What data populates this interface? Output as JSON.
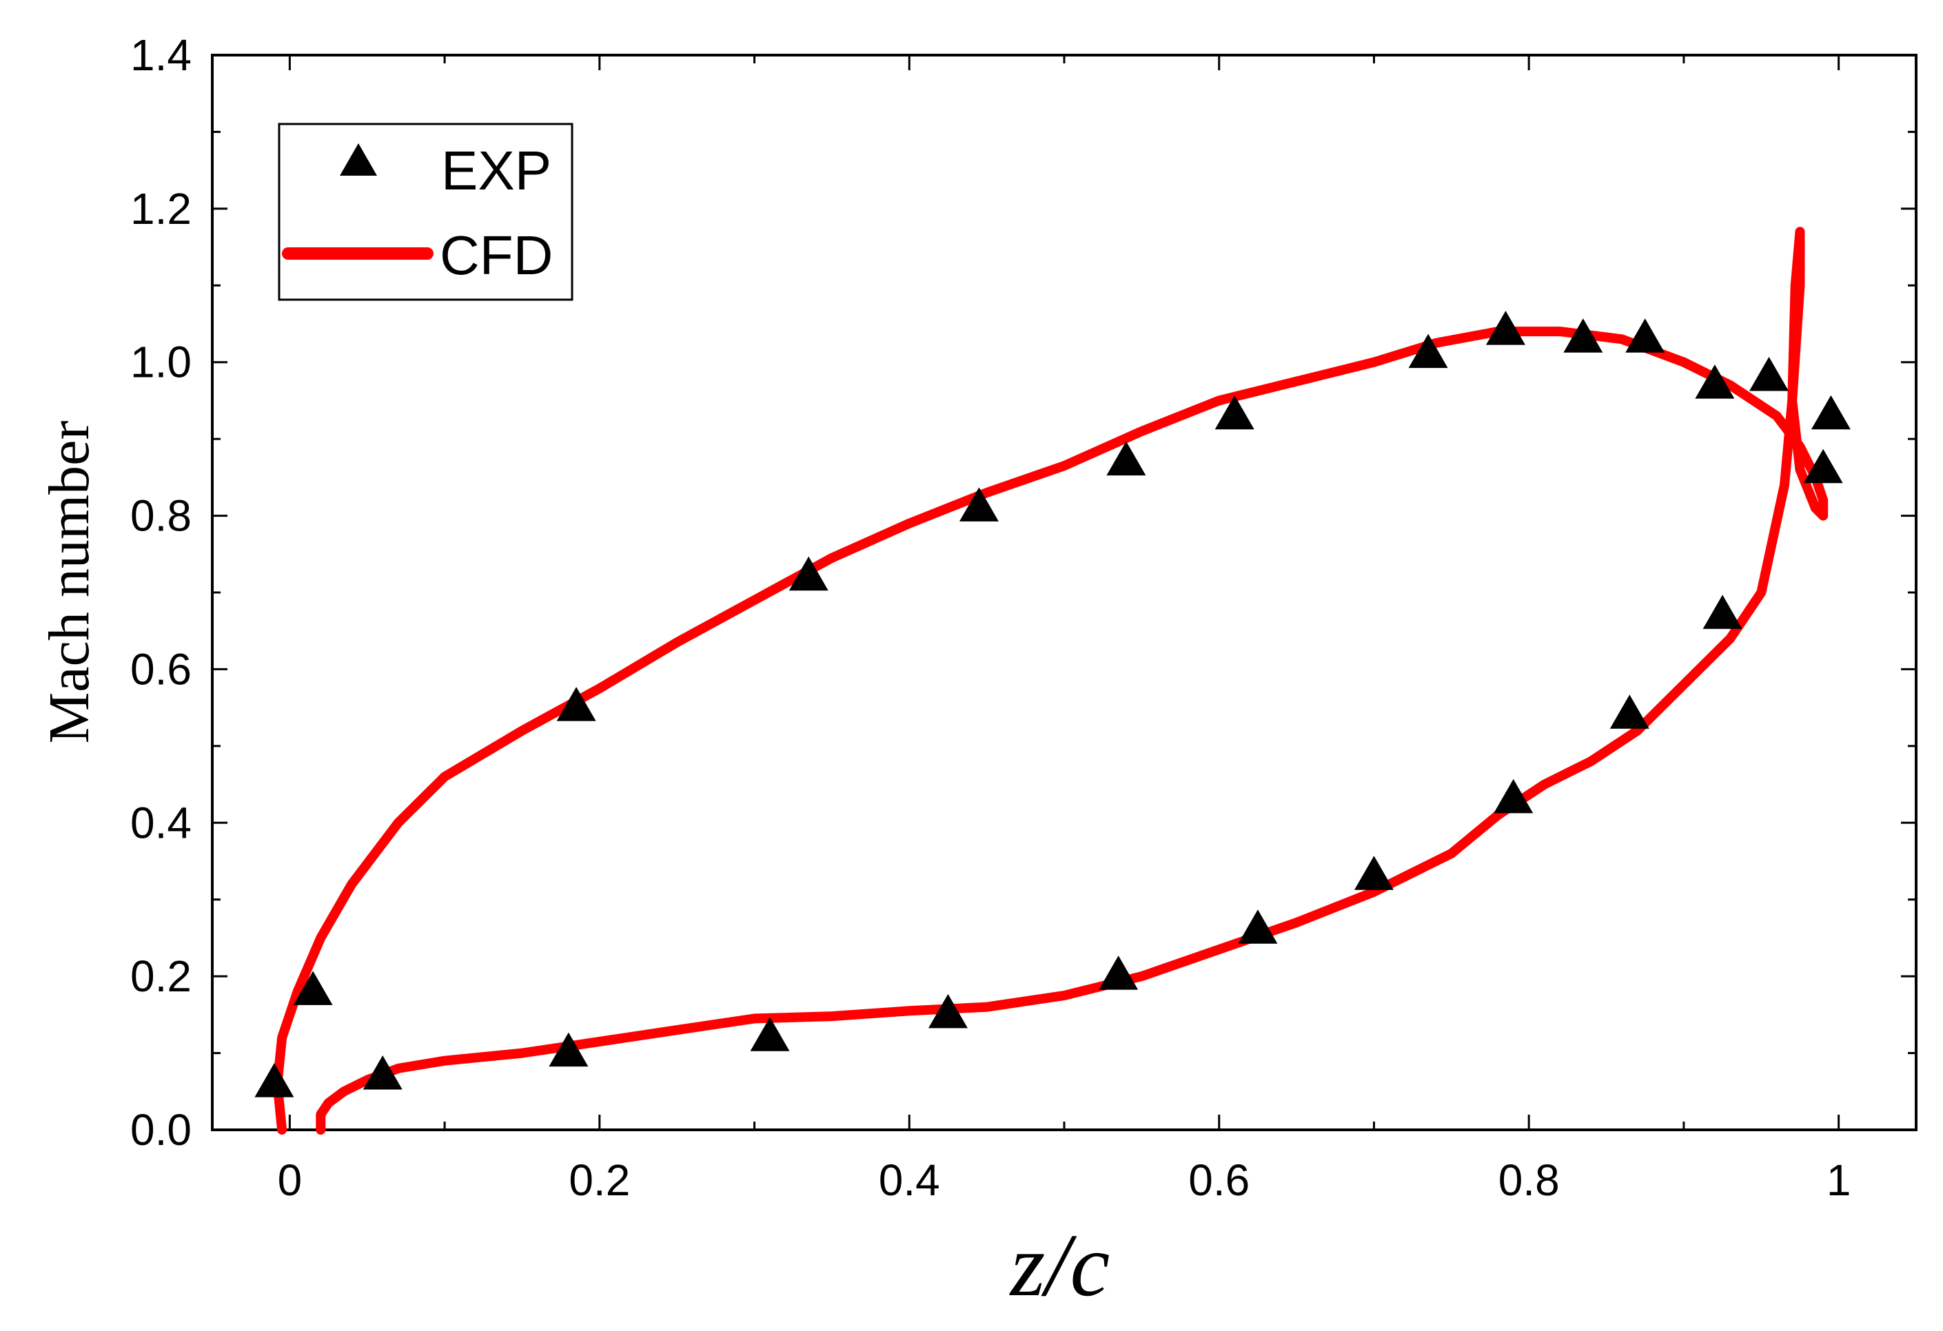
{
  "chart_data": {
    "type": "scatter",
    "title": "",
    "xlabel": "z/c",
    "ylabel": "Mach number",
    "xlim": [
      -0.05,
      1.05
    ],
    "ylim": [
      0.0,
      1.4
    ],
    "xticks": [
      0,
      0.2,
      0.4,
      0.6,
      0.8,
      1
    ],
    "xtick_labels": [
      "0",
      "0.2",
      "0.4",
      "0.6",
      "0.8",
      "1"
    ],
    "yticks": [
      0.0,
      0.2,
      0.4,
      0.6,
      0.8,
      1.0,
      1.2,
      1.4
    ],
    "ytick_labels": [
      "0.0",
      "0.2",
      "0.4",
      "0.6",
      "0.8",
      "1.0",
      "1.2",
      "1.4"
    ],
    "grid": false,
    "legend_position": "top-left",
    "colors": {
      "exp": "#000000",
      "cfd": "#ff0000",
      "axis": "#000000"
    },
    "series": [
      {
        "name": "EXP",
        "kind": "scatter",
        "marker": "triangle",
        "x": [
          -0.01,
          0.015,
          0.06,
          0.18,
          0.185,
          0.31,
          0.335,
          0.425,
          0.445,
          0.535,
          0.54,
          0.61,
          0.625,
          0.7,
          0.735,
          0.785,
          0.79,
          0.835,
          0.865,
          0.875,
          0.92,
          0.925,
          0.955,
          0.99,
          0.995
        ],
        "y": [
          0.06,
          0.18,
          0.07,
          0.1,
          0.55,
          0.12,
          0.72,
          0.15,
          0.81,
          0.2,
          0.87,
          0.93,
          0.26,
          0.33,
          1.01,
          1.04,
          0.43,
          1.03,
          0.54,
          1.03,
          0.97,
          0.67,
          0.98,
          0.86,
          0.93
        ]
      },
      {
        "name": "CFD",
        "kind": "line",
        "x": [
          -0.005,
          -0.008,
          -0.005,
          0.005,
          0.02,
          0.04,
          0.07,
          0.1,
          0.15,
          0.2,
          0.25,
          0.3,
          0.35,
          0.4,
          0.45,
          0.5,
          0.55,
          0.6,
          0.65,
          0.7,
          0.74,
          0.78,
          0.82,
          0.86,
          0.9,
          0.93,
          0.96,
          0.975,
          0.985,
          0.99,
          0.99,
          0.985,
          0.975,
          0.97,
          0.975,
          0.975,
          0.972,
          0.97,
          0.965,
          0.95,
          0.93,
          0.9,
          0.87,
          0.84,
          0.81,
          0.78,
          0.75,
          0.72,
          0.7,
          0.65,
          0.6,
          0.55,
          0.5,
          0.45,
          0.4,
          0.35,
          0.3,
          0.25,
          0.2,
          0.15,
          0.1,
          0.07,
          0.05,
          0.035,
          0.025,
          0.02,
          0.02
        ],
        "y": [
          0.0,
          0.06,
          0.12,
          0.18,
          0.25,
          0.32,
          0.4,
          0.46,
          0.52,
          0.575,
          0.635,
          0.69,
          0.745,
          0.79,
          0.83,
          0.865,
          0.91,
          0.95,
          0.975,
          1.0,
          1.025,
          1.04,
          1.04,
          1.03,
          1.0,
          0.97,
          0.93,
          0.89,
          0.85,
          0.82,
          0.8,
          0.81,
          0.86,
          0.95,
          1.1,
          1.17,
          1.1,
          0.95,
          0.84,
          0.7,
          0.64,
          0.58,
          0.52,
          0.48,
          0.45,
          0.41,
          0.36,
          0.33,
          0.31,
          0.27,
          0.235,
          0.2,
          0.175,
          0.16,
          0.155,
          0.148,
          0.145,
          0.13,
          0.115,
          0.1,
          0.09,
          0.08,
          0.065,
          0.05,
          0.035,
          0.02,
          0.0
        ]
      }
    ]
  }
}
